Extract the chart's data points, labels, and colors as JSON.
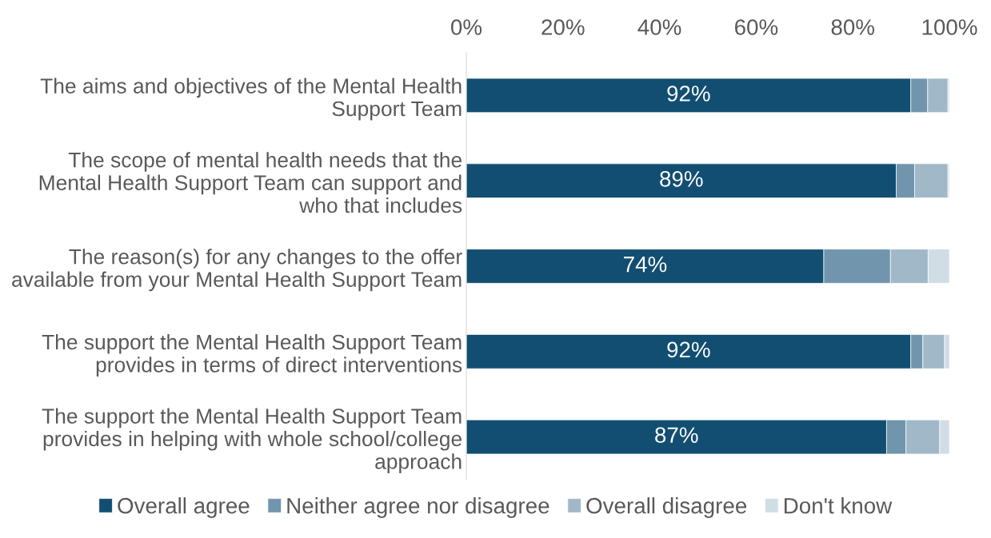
{
  "chart_data": {
    "type": "bar",
    "orientation": "horizontal",
    "stacked": true,
    "categories": [
      "The aims and objectives of the Mental Health Support Team",
      "The scope of mental health needs that the Mental Health Support Team can support and who that includes",
      "The reason(s) for any changes to the offer available from your Mental Health Support Team",
      "The support the Mental Health Support Team provides in terms of direct interventions",
      "The support the Mental Health Support Team provides in helping with whole school/college approach"
    ],
    "series": [
      {
        "name": "Overall agree",
        "color": "#124e72",
        "values": [
          92,
          89,
          74,
          92,
          87
        ],
        "value_labels": [
          "92%",
          "89%",
          "74%",
          "92%",
          "87%"
        ]
      },
      {
        "name": "Neither agree nor disagree",
        "color": "#7095ad",
        "values": [
          3.5,
          3.8,
          13.8,
          2.5,
          4.0
        ]
      },
      {
        "name": "Overall disagree",
        "color": "#a1b8c8",
        "values": [
          4.2,
          6.9,
          7.8,
          4.5,
          7.0
        ]
      },
      {
        "name": "Don't know",
        "color": "#d0dde5",
        "values": [
          0.3,
          0.3,
          4.4,
          1.0,
          2.0
        ]
      }
    ],
    "xlim": [
      0,
      100
    ],
    "xticks": [
      {
        "value": 0,
        "label": "0%"
      },
      {
        "value": 20,
        "label": "20%"
      },
      {
        "value": 40,
        "label": "40%"
      },
      {
        "value": 60,
        "label": "60%"
      },
      {
        "value": 80,
        "label": "80%"
      },
      {
        "value": 100,
        "label": "100%"
      }
    ],
    "grid": false,
    "legend": "bottom"
  }
}
